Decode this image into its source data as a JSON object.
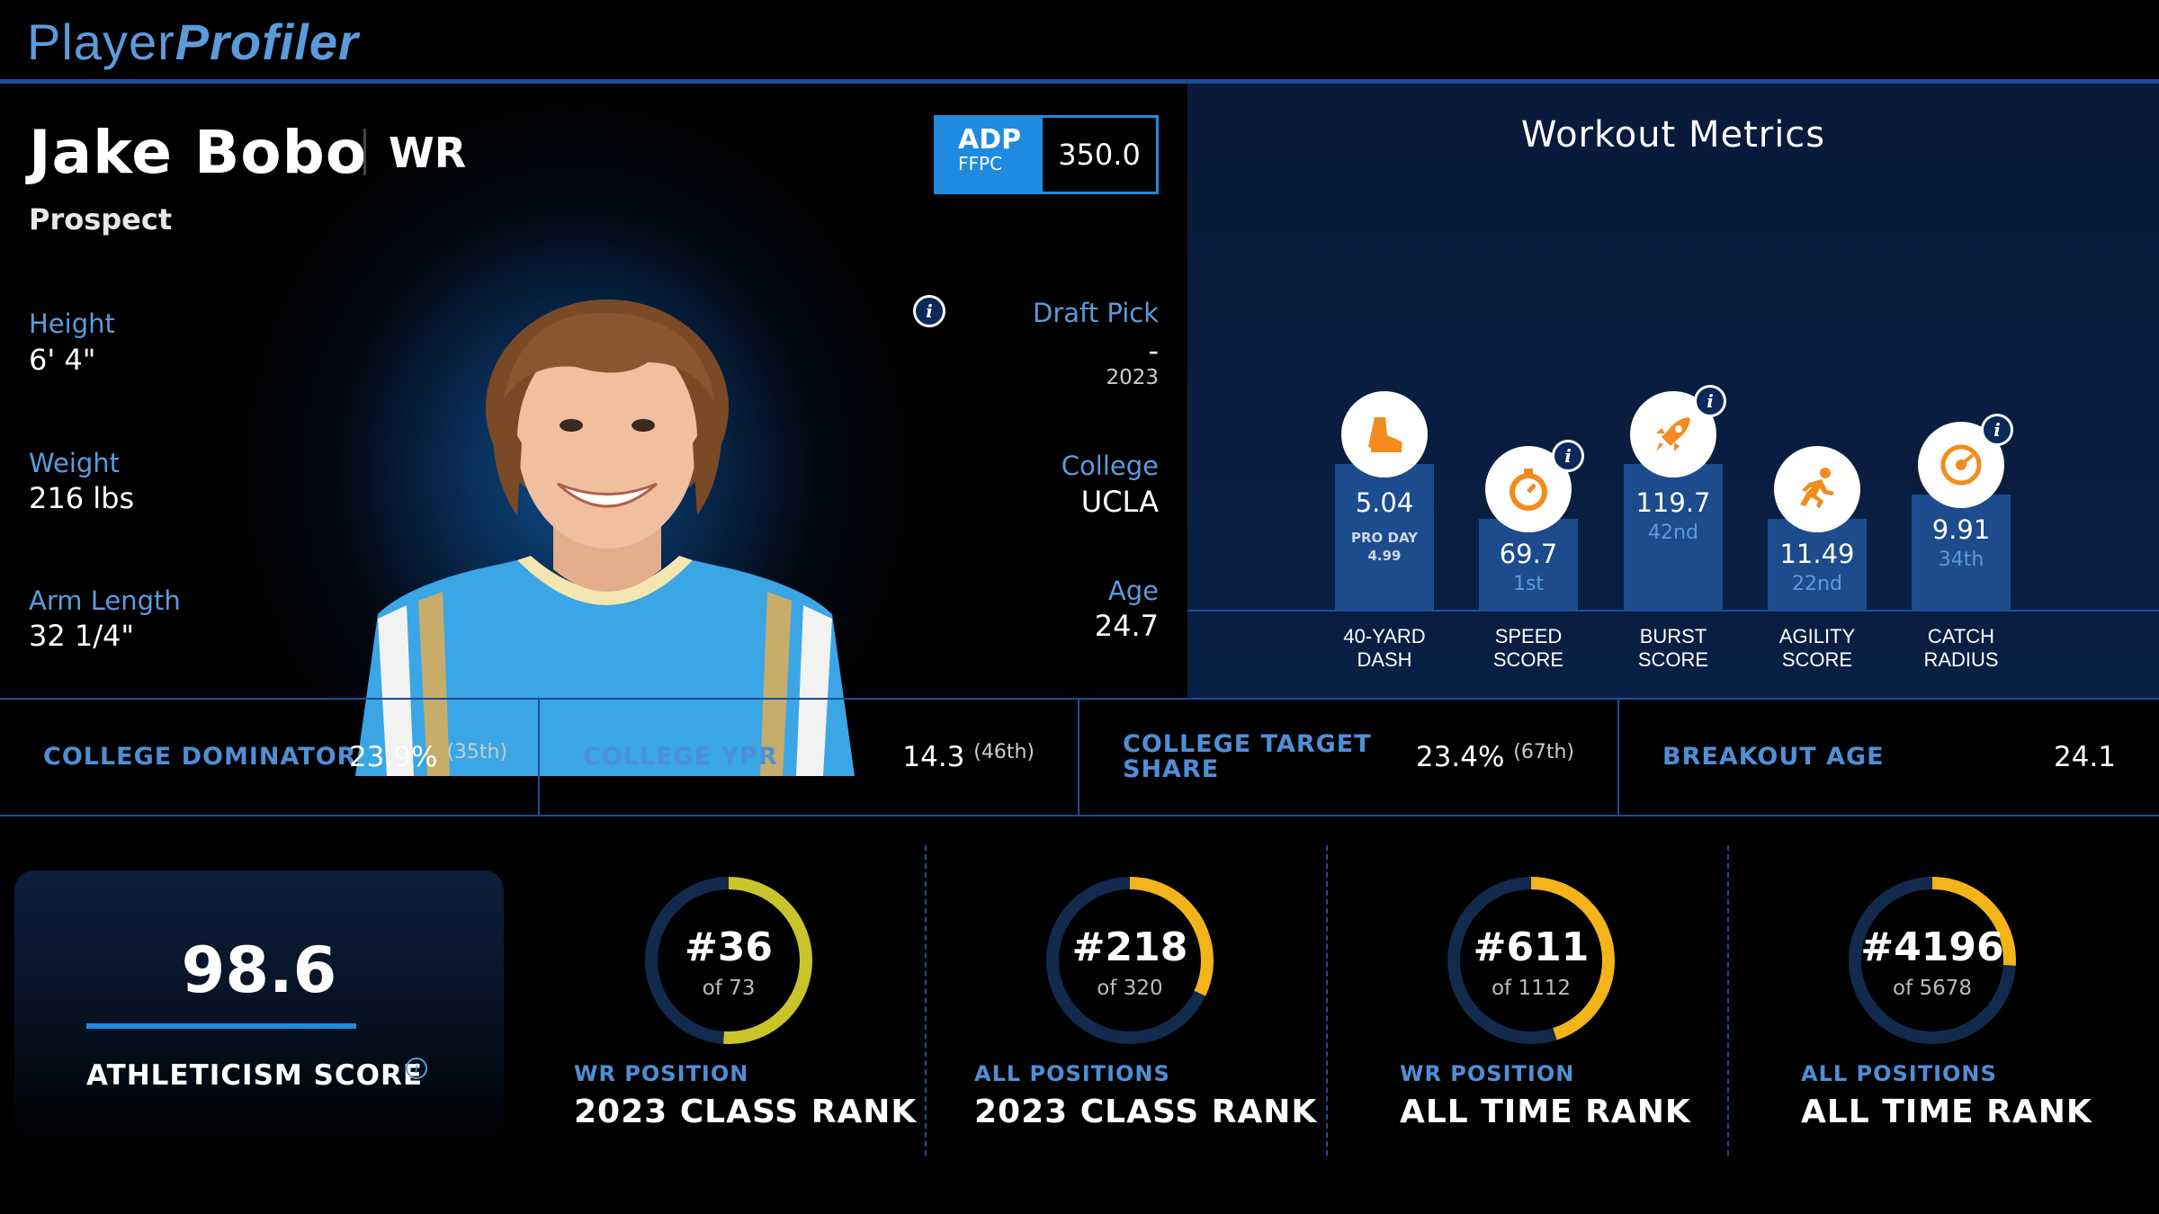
{
  "brand": {
    "part1": "Player",
    "part2": "Profiler"
  },
  "player": {
    "name": "Jake Bobo",
    "position": "WR",
    "status": "Prospect",
    "height_label": "Height",
    "height": "6' 4\"",
    "weight_label": "Weight",
    "weight": "216 lbs",
    "arm_label": "Arm Length",
    "arm": "32 1/4\"",
    "draft_label": "Draft Pick",
    "draft_pick": "-",
    "draft_year": "2023",
    "college_label": "College",
    "college": "UCLA",
    "age_label": "Age",
    "age": "24.7"
  },
  "adp": {
    "label": "ADP",
    "source": "FFPC",
    "value": "350.0"
  },
  "workout": {
    "title": "Workout Metrics",
    "metrics": [
      {
        "value": "5.04",
        "rank": "",
        "proday_label": "PRO DAY",
        "proday_value": "4.99",
        "name1": "40-YARD",
        "name2": "DASH",
        "icon": "running-shoe-icon"
      },
      {
        "value": "69.7",
        "rank": "1st",
        "name1": "SPEED",
        "name2": "SCORE",
        "icon": "stopwatch-icon"
      },
      {
        "value": "119.7",
        "rank": "42nd",
        "name1": "BURST",
        "name2": "SCORE",
        "icon": "rocket-icon"
      },
      {
        "value": "11.49",
        "rank": "22nd",
        "name1": "AGILITY",
        "name2": "SCORE",
        "icon": "runner-icon"
      },
      {
        "value": "9.91",
        "rank": "34th",
        "name1": "CATCH",
        "name2": "RADIUS",
        "icon": "target-icon"
      }
    ]
  },
  "college_stats": [
    {
      "label1": "COLLEGE DOMINATOR",
      "label2": "",
      "value": "23.9%",
      "rank": "(35th)"
    },
    {
      "label1": "COLLEGE YPR",
      "label2": "",
      "value": "14.3",
      "rank": "(46th)"
    },
    {
      "label1": "COLLEGE TARGET",
      "label2": "SHARE",
      "value": "23.4%",
      "rank": "(67th)"
    },
    {
      "label1": "BREAKOUT AGE",
      "label2": "",
      "value": "24.1",
      "rank": ""
    }
  ],
  "athleticism": {
    "score": "98.6",
    "label": "ATHLETICISM SCORE"
  },
  "ranks": [
    {
      "rank": "#36",
      "of": "of 73",
      "sub": "WR POSITION",
      "main": "2023 CLASS RANK",
      "fraction": 0.51,
      "color": "#c9c42a"
    },
    {
      "rank": "#218",
      "of": "of 320",
      "sub": "ALL POSITIONS",
      "main": "2023 CLASS RANK",
      "fraction": 0.32,
      "color": "#f2b418"
    },
    {
      "rank": "#611",
      "of": "of 1112",
      "sub": "WR POSITION",
      "main": "ALL TIME RANK",
      "fraction": 0.45,
      "color": "#f2b418"
    },
    {
      "rank": "#4196",
      "of": "of 5678",
      "sub": "ALL POSITIONS",
      "main": "ALL TIME RANK",
      "fraction": 0.26,
      "color": "#f2b418"
    }
  ]
}
